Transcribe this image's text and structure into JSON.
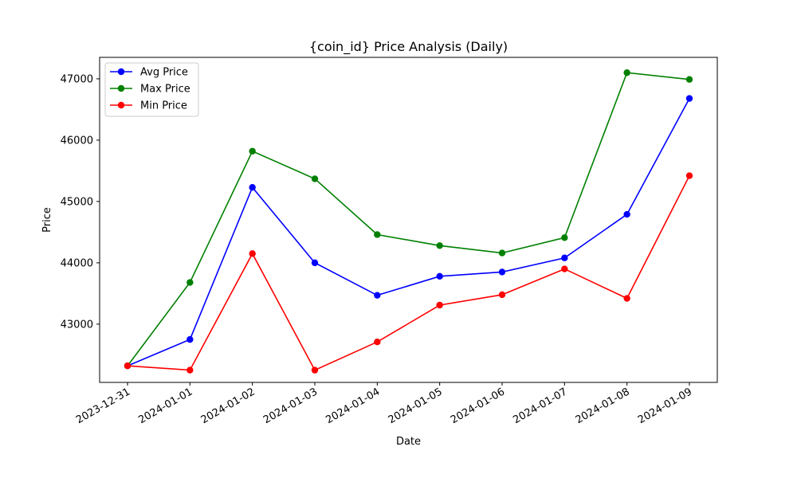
{
  "chart_data": {
    "type": "line",
    "title": "{coin_id} Price Analysis (Daily)",
    "xlabel": "Date",
    "ylabel": "Price",
    "categories": [
      "2023-12-31",
      "2024-01-01",
      "2024-01-02",
      "2024-01-03",
      "2024-01-04",
      "2024-01-05",
      "2024-01-06",
      "2024-01-07",
      "2024-01-08",
      "2024-01-09"
    ],
    "yticks": [
      43000,
      44000,
      45000,
      46000,
      47000
    ],
    "ylim": [
      42050,
      47350
    ],
    "grid": false,
    "legend_position": "top-left",
    "series": [
      {
        "name": "Avg Price",
        "color": "#0000ff",
        "marker": "circle",
        "values": [
          42320,
          42750,
          45230,
          44000,
          43470,
          43780,
          43850,
          44080,
          44790,
          46680
        ]
      },
      {
        "name": "Max Price",
        "color": "#008000",
        "marker": "circle",
        "values": [
          42320,
          43680,
          45820,
          45370,
          44460,
          44280,
          44160,
          44410,
          47100,
          46990
        ]
      },
      {
        "name": "Min Price",
        "color": "#ff0000",
        "marker": "circle",
        "values": [
          42320,
          42250,
          44150,
          42250,
          42710,
          43310,
          43480,
          43900,
          43420,
          45420
        ]
      }
    ]
  }
}
